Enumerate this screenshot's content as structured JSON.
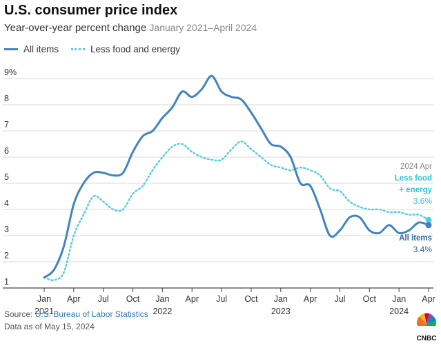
{
  "title": "U.S. consumer price index",
  "subtitle": "Year-over-year percent change",
  "date_range": "January 2021–April 2024",
  "legend": {
    "all_items": "All items",
    "less_food_energy": "Less food and energy"
  },
  "annotations": {
    "date": "2024 Apr",
    "less_line1": "Less food",
    "less_line2": "+ energy",
    "less_value": "3.6%",
    "all_label": "All items",
    "all_value": "3.4%"
  },
  "footer": {
    "source_prefix": "Source: ",
    "source_org": "U.S. Bureau of Labor Statistics",
    "data_as_of": "Data as of May 15, 2024"
  },
  "logo_text": "CNBC",
  "colors": {
    "all_items": "#3f84c2",
    "less_food_energy": "#4ecde0",
    "annotation_dark": "#2c6aa3",
    "annotation_light": "#2fc3d8"
  },
  "chart_data": {
    "type": "line",
    "title": "U.S. consumer price index",
    "ylim": [
      1,
      9
    ],
    "y_ticks": [
      "1",
      "2",
      "3",
      "4",
      "5",
      "6",
      "7",
      "8",
      "9%"
    ],
    "x_ticks": [
      {
        "month": "Jan",
        "year": "2021"
      },
      {
        "month": "Apr",
        "year": ""
      },
      {
        "month": "Jul",
        "year": ""
      },
      {
        "month": "Oct",
        "year": ""
      },
      {
        "month": "Jan",
        "year": "2022"
      },
      {
        "month": "Apr",
        "year": ""
      },
      {
        "month": "Jul",
        "year": ""
      },
      {
        "month": "Oct",
        "year": ""
      },
      {
        "month": "Jan",
        "year": "2023"
      },
      {
        "month": "Apr",
        "year": ""
      },
      {
        "month": "Jul",
        "year": ""
      },
      {
        "month": "Oct",
        "year": ""
      },
      {
        "month": "Jan",
        "year": "2024"
      },
      {
        "month": "Apr",
        "year": ""
      }
    ],
    "x": [
      "2021-01",
      "2021-02",
      "2021-03",
      "2021-04",
      "2021-05",
      "2021-06",
      "2021-07",
      "2021-08",
      "2021-09",
      "2021-10",
      "2021-11",
      "2021-12",
      "2022-01",
      "2022-02",
      "2022-03",
      "2022-04",
      "2022-05",
      "2022-06",
      "2022-07",
      "2022-08",
      "2022-09",
      "2022-10",
      "2022-11",
      "2022-12",
      "2023-01",
      "2023-02",
      "2023-03",
      "2023-04",
      "2023-05",
      "2023-06",
      "2023-07",
      "2023-08",
      "2023-09",
      "2023-10",
      "2023-11",
      "2023-12",
      "2024-01",
      "2024-02",
      "2024-03",
      "2024-04"
    ],
    "series": [
      {
        "name": "All items",
        "values": [
          1.4,
          1.7,
          2.6,
          4.2,
          5.0,
          5.4,
          5.4,
          5.3,
          5.4,
          6.2,
          6.8,
          7.0,
          7.5,
          7.9,
          8.5,
          8.3,
          8.6,
          9.1,
          8.5,
          8.3,
          8.2,
          7.7,
          7.1,
          6.5,
          6.4,
          6.0,
          5.0,
          4.9,
          4.0,
          3.0,
          3.2,
          3.7,
          3.7,
          3.2,
          3.1,
          3.4,
          3.1,
          3.2,
          3.5,
          3.4
        ]
      },
      {
        "name": "Less food and energy",
        "values": [
          1.4,
          1.3,
          1.6,
          3.0,
          3.8,
          4.5,
          4.3,
          4.0,
          4.0,
          4.6,
          4.9,
          5.5,
          6.0,
          6.4,
          6.5,
          6.2,
          6.0,
          5.9,
          5.9,
          6.3,
          6.6,
          6.3,
          6.0,
          5.7,
          5.6,
          5.5,
          5.6,
          5.5,
          5.3,
          4.8,
          4.7,
          4.3,
          4.1,
          4.0,
          4.0,
          3.9,
          3.9,
          3.8,
          3.8,
          3.6
        ]
      }
    ]
  }
}
